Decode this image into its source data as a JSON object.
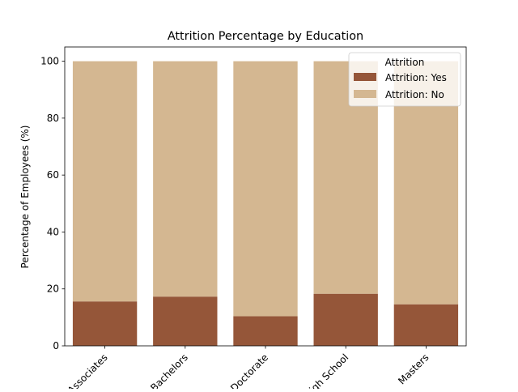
{
  "chart_data": {
    "type": "bar",
    "stacked": true,
    "title": "Attrition Percentage by Education",
    "xlabel": "",
    "ylabel": "Percentage of Employees (%)",
    "categories": [
      "Associates",
      "Bachelors",
      "Doctorate",
      "High School",
      "Masters"
    ],
    "ylim": [
      0,
      105
    ],
    "yticks": [
      0,
      20,
      40,
      60,
      80,
      100
    ],
    "grid": false,
    "legend": {
      "title": "Attrition",
      "placement": "top-right"
    },
    "series": [
      {
        "name": "Attrition: Yes",
        "color": "#955639",
        "values": [
          15.6,
          17.3,
          10.4,
          18.3,
          14.6
        ]
      },
      {
        "name": "Attrition: No",
        "color": "#d4b791",
        "values": [
          84.4,
          82.7,
          89.6,
          81.7,
          85.4
        ]
      }
    ]
  }
}
